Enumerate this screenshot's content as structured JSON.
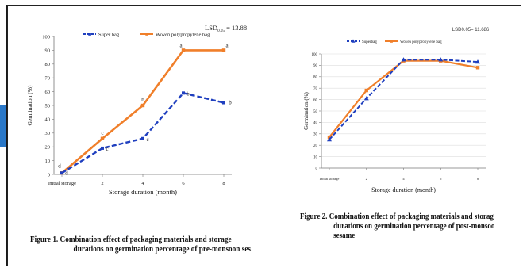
{
  "chart_data": [
    {
      "type": "line",
      "lsd_label": "LSD",
      "lsd_sub": "0.05",
      "lsd_value": "= 13.88",
      "ylabel": "Germination (%)",
      "xlabel": "Storage duration (month)",
      "categories": [
        "Initial storage",
        "2",
        "4",
        "6",
        "8"
      ],
      "ylim": [
        0,
        100
      ],
      "yticks": [
        0,
        10,
        20,
        30,
        40,
        50,
        60,
        70,
        80,
        90,
        100
      ],
      "series": [
        {
          "name": "Super bag",
          "values": [
            1,
            19,
            26,
            59,
            52
          ],
          "letters": [
            "d",
            "c",
            "c",
            "b",
            "b"
          ],
          "color": "#1f3fbf",
          "dashed": true
        },
        {
          "name": "Woven polypropylene bag",
          "values": [
            1,
            26,
            50,
            90,
            90
          ],
          "letters": [
            "d",
            "c",
            "b",
            "a",
            "a"
          ],
          "color": "#f07f2a",
          "dashed": false
        }
      ],
      "caption": {
        "line1": "Figure 1. Combination effect of packaging materials and storage",
        "line2": "durations on germination percentage of pre-monsoon sesame"
      }
    },
    {
      "type": "line",
      "lsd_label": "LSD0.05= 11.686",
      "ylabel": "Germination (%)",
      "xlabel": "Storage duration (month)",
      "categories": [
        "Initial storage",
        "2",
        "4",
        "6",
        "8"
      ],
      "ylim": [
        0,
        100
      ],
      "yticks": [
        0,
        10,
        20,
        30,
        40,
        50,
        60,
        70,
        80,
        90,
        100
      ],
      "series": [
        {
          "name": "Superbag",
          "values": [
            25,
            61,
            95,
            95,
            93
          ],
          "color": "#1f3fbf",
          "dashed": true
        },
        {
          "name": "Woven polypropylene bag",
          "values": [
            27,
            68,
            94,
            94,
            88
          ],
          "color": "#f07f2a",
          "dashed": false
        }
      ],
      "caption": {
        "line1": "Figure 2. Combination effect of packaging materials and storag",
        "line2": "durations on germination percentage of post-monsoo",
        "line3": "sesame"
      }
    }
  ]
}
